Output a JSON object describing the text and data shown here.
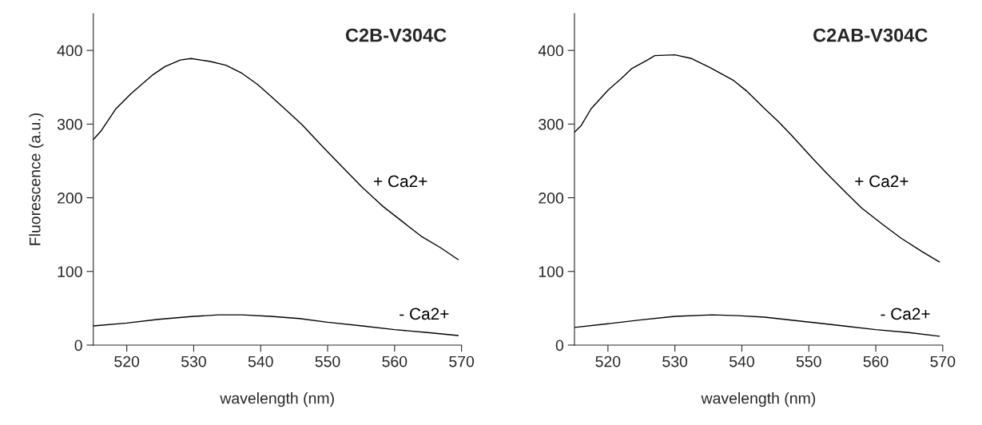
{
  "chart_data": [
    {
      "type": "line",
      "title": "C2B-V304C",
      "xlabel": "wavelength (nm)",
      "ylabel": "Fluorescence (a.u.)",
      "xlim": [
        515,
        570
      ],
      "xticks": [
        520,
        530,
        540,
        550,
        560,
        570
      ],
      "ylim": [
        0,
        450
      ],
      "yticks": [
        0,
        100,
        200,
        300,
        400
      ],
      "grid": false,
      "legend": false,
      "series": [
        {
          "name": "+ Ca2+",
          "color": "#000000",
          "x": [
            515,
            516.1,
            518.4,
            520.6,
            523.9,
            525.7,
            528,
            529.6,
            532.5,
            534.8,
            537.2,
            539.5,
            541.5,
            543.8,
            546.2,
            549.3,
            552.4,
            555.2,
            558.3,
            561.4,
            564.1,
            566.9,
            569.5
          ],
          "values": [
            279,
            290,
            321,
            341,
            367,
            378,
            387,
            389,
            385,
            380,
            369,
            354,
            338,
            319,
            299,
            269,
            240,
            214,
            188,
            166,
            147,
            132,
            116
          ]
        },
        {
          "name": "- Ca2+",
          "color": "#000000",
          "x": [
            515,
            520,
            524.7,
            530,
            533.7,
            537.2,
            541.5,
            545.8,
            550,
            555.2,
            560,
            564.9,
            569.5
          ],
          "values": [
            26,
            30,
            35,
            39,
            41,
            41,
            39,
            36,
            31,
            26,
            21,
            17,
            13
          ]
        }
      ]
    },
    {
      "type": "line",
      "title": "C2AB-V304C",
      "xlabel": "wavelength (nm)",
      "xlim": [
        515,
        570
      ],
      "xticks": [
        520,
        530,
        540,
        550,
        560,
        570
      ],
      "ylim": [
        0,
        450
      ],
      "yticks": [
        0,
        100,
        200,
        300,
        400
      ],
      "grid": false,
      "legend": false,
      "series": [
        {
          "name": "+ Ca2+",
          "color": "#000000",
          "x": [
            515,
            516,
            517.5,
            520,
            522,
            523.5,
            525.9,
            527,
            530,
            532.5,
            535.2,
            538.8,
            540.7,
            543.4,
            545.4,
            547.3,
            550.1,
            552.8,
            555.2,
            557.9,
            561,
            563.8,
            566.9,
            569.5
          ],
          "values": [
            289,
            298,
            321,
            346,
            362,
            375,
            387,
            393,
            394,
            389,
            377,
            359,
            345,
            321,
            304,
            286,
            258,
            232,
            210,
            186,
            164,
            145,
            127,
            113
          ]
        },
        {
          "name": "- Ca2+",
          "color": "#000000",
          "x": [
            515,
            520,
            524.7,
            530,
            535.6,
            539.5,
            543.4,
            549.3,
            555.2,
            560,
            564.9,
            569.5
          ],
          "values": [
            24,
            29,
            34,
            39,
            41,
            40,
            38,
            32,
            26,
            21,
            17,
            12
          ]
        }
      ]
    }
  ]
}
